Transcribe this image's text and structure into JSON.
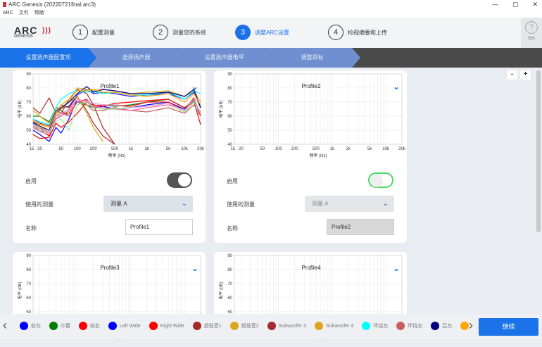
{
  "window": {
    "title": "ARC Genesis (20220721final.arc3)",
    "controls": [
      "—",
      "▢",
      "✕"
    ]
  },
  "menu": [
    "ARC",
    "文件",
    "帮助"
  ],
  "logo": {
    "text": "ARC",
    "sub": "GENESIS"
  },
  "steps": [
    {
      "num": "1",
      "label": "配置测量"
    },
    {
      "num": "2",
      "label": "测量您的系统"
    },
    {
      "num": "3",
      "label": "调整ARC设置",
      "active": true
    },
    {
      "num": "4",
      "label": "检视摘要和上传"
    }
  ],
  "help": {
    "icon": "?",
    "label": "帮助"
  },
  "breadcrumbs": [
    {
      "label": "设置扬声器配置项",
      "active": true
    },
    {
      "label": "选择扬声器"
    },
    {
      "label": "设置扬声器电平"
    },
    {
      "label": "调整目标"
    }
  ],
  "zoom": {
    "minus": "-",
    "plus": "+"
  },
  "axis": {
    "ylabel": "电平 (dB)",
    "xlabel": "频率 (Hz)",
    "yticks": [
      40,
      50,
      60,
      70,
      80,
      90
    ],
    "xticks": [
      "15",
      "20",
      "50",
      "100",
      "200",
      "500",
      "1k",
      "2k",
      "5k",
      "10k",
      "20k"
    ],
    "xtick_values": [
      15,
      20,
      50,
      100,
      200,
      500,
      1000,
      2000,
      5000,
      10000,
      20000
    ],
    "ylim": [
      40,
      90
    ],
    "xlim": [
      15,
      20000
    ],
    "scale": "log"
  },
  "labels": {
    "enable": "启用",
    "measurement": "使用的测量",
    "name": "名称"
  },
  "profiles": [
    {
      "title": "Profile1",
      "enabled": true,
      "measurement": "测量 A",
      "name": "Profile1"
    },
    {
      "title": "Profile2",
      "enabled": false,
      "measurement": "测量 A",
      "name": "Profile2"
    },
    {
      "title": "Profile3"
    },
    {
      "title": "Profile4"
    }
  ],
  "chart_data": {
    "type": "line",
    "title": "Profile1",
    "xlabel": "频率 (Hz)",
    "ylabel": "电平 (dB)",
    "xlim": [
      15,
      20000
    ],
    "ylim": [
      40,
      90
    ],
    "x": [
      15,
      20,
      30,
      40,
      50,
      70,
      100,
      150,
      200,
      300,
      500,
      1000,
      2000,
      5000,
      10000,
      15000,
      20000
    ],
    "series": [
      {
        "color": "#0000ff",
        "values": [
          50,
          47,
          42,
          52,
          48,
          58,
          72,
          70,
          66,
          67,
          65,
          66,
          68,
          70,
          65,
          72,
          60
        ]
      },
      {
        "color": "#008000",
        "values": [
          60,
          60,
          56,
          66,
          64,
          60,
          70,
          68,
          66,
          68,
          67,
          68,
          70,
          72,
          66,
          71,
          62
        ]
      },
      {
        "color": "#ff0000",
        "values": [
          47,
          44,
          45,
          55,
          52,
          56,
          62,
          70,
          68,
          67,
          69,
          70,
          71,
          72,
          66,
          70,
          54
        ]
      },
      {
        "color": "#1a1aff",
        "values": [
          55,
          52,
          48,
          64,
          66,
          67,
          75,
          79,
          76,
          77,
          76,
          74,
          75,
          76,
          72,
          77,
          66
        ]
      },
      {
        "color": "#ff1010",
        "values": [
          52,
          50,
          46,
          60,
          62,
          62,
          70,
          72,
          66,
          68,
          68,
          67,
          70,
          70,
          64,
          73,
          60
        ]
      },
      {
        "color": "#a52a2a",
        "values": [
          66,
          62,
          73,
          62,
          68,
          66,
          74,
          64,
          55,
          46,
          38,
          null,
          null,
          null,
          null,
          null,
          null
        ]
      },
      {
        "color": "#daa520",
        "values": [
          64,
          60,
          55,
          66,
          66,
          70,
          74,
          62,
          52,
          42,
          null,
          null,
          null,
          null,
          null,
          null,
          null
        ]
      },
      {
        "color": "#a52a2a",
        "values": [
          58,
          55,
          53,
          64,
          62,
          72,
          79,
          76,
          68,
          52,
          38,
          null,
          null,
          null,
          null,
          null,
          null
        ]
      },
      {
        "color": "#daa520",
        "values": [
          56,
          52,
          50,
          60,
          65,
          70,
          80,
          79,
          78,
          79,
          78,
          76,
          77,
          78,
          74,
          78,
          70
        ]
      },
      {
        "color": "#00ffff",
        "values": [
          58,
          56,
          54,
          66,
          72,
          76,
          78,
          77,
          78,
          76,
          77,
          75,
          75,
          77,
          72,
          78,
          76
        ]
      },
      {
        "color": "#cd5c5c",
        "values": [
          54,
          50,
          49,
          58,
          60,
          64,
          72,
          68,
          64,
          64,
          66,
          64,
          63,
          66,
          62,
          68,
          60
        ]
      },
      {
        "color": "#000080",
        "values": [
          56,
          53,
          50,
          62,
          66,
          70,
          76,
          81,
          77,
          79,
          78,
          76,
          76,
          77,
          74,
          79,
          66
        ]
      },
      {
        "color": "#ffa500",
        "values": [
          57,
          54,
          52,
          62,
          68,
          72,
          78,
          78,
          79,
          77,
          77,
          75,
          74,
          76,
          70,
          76,
          68
        ]
      },
      {
        "color": "#ff69b4",
        "values": [
          52,
          49,
          47,
          58,
          62,
          60,
          70,
          71,
          67,
          66,
          65,
          64,
          66,
          68,
          64,
          70,
          62
        ]
      },
      {
        "color": "#90ee90",
        "values": [
          53,
          50,
          48,
          56,
          58,
          50,
          68,
          70,
          66,
          65,
          65,
          66,
          67,
          69,
          63,
          70,
          62
        ]
      },
      {
        "color": "#dda0dd",
        "values": [
          54,
          51,
          49,
          60,
          62,
          65,
          72,
          70,
          69,
          68,
          68,
          66,
          67,
          69,
          64,
          72,
          63
        ]
      }
    ]
  },
  "legend": [
    {
      "label": "前左",
      "color": "#0000ff"
    },
    {
      "label": "中置",
      "color": "#008000"
    },
    {
      "label": "前右",
      "color": "#ff0000"
    },
    {
      "label": "Left Wide",
      "color": "#0000ff"
    },
    {
      "label": "Right Wide",
      "color": "#ff0000"
    },
    {
      "label": "超低音1",
      "color": "#a52a2a"
    },
    {
      "label": "超低音2",
      "color": "#daa520"
    },
    {
      "label": "Subwoofer 3",
      "color": "#a52a2a"
    },
    {
      "label": "Subwoofer 4",
      "color": "#daa520"
    },
    {
      "label": "环绕左",
      "color": "#00ffff"
    },
    {
      "label": "环绕右",
      "color": "#cd5c5c"
    },
    {
      "label": "后左",
      "color": "#000080"
    },
    {
      "label": "",
      "color": "#ffa500"
    }
  ],
  "continue_label": "继续",
  "colors": {
    "accent": "#1a73e8",
    "toggle_on": "#555555",
    "toggle_off_border": "#4cd964"
  }
}
